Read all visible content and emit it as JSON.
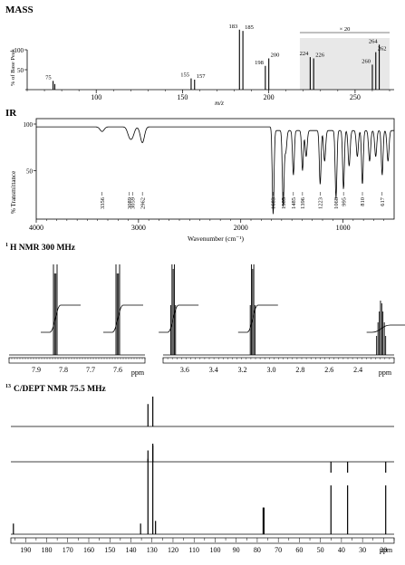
{
  "mass": {
    "title": "MASS",
    "ylabel": "% of Base Peak",
    "xlabel": "m/z",
    "magnify_label": "× 20",
    "xticks": [
      100,
      150,
      200,
      250
    ],
    "yticks": [
      50,
      100
    ],
    "xlim": [
      60,
      270
    ],
    "ylim": [
      0,
      100
    ],
    "magnified_region": [
      218,
      270
    ],
    "peaks": [
      {
        "mz": 75,
        "intensity": 14,
        "label": "75"
      },
      {
        "mz": 76,
        "intensity": 9,
        "label": ""
      },
      {
        "mz": 155,
        "intensity": 18,
        "label": "155"
      },
      {
        "mz": 157,
        "intensity": 16,
        "label": "157"
      },
      {
        "mz": 183,
        "intensity": 96,
        "label": "183"
      },
      {
        "mz": 185,
        "intensity": 94,
        "label": "185"
      },
      {
        "mz": 198,
        "intensity": 38,
        "label": "198"
      },
      {
        "mz": 200,
        "intensity": 50,
        "label": "200"
      },
      {
        "mz": 224,
        "intensity": 52,
        "label": "224"
      },
      {
        "mz": 226,
        "intensity": 50,
        "label": "226"
      },
      {
        "mz": 260,
        "intensity": 40,
        "label": "260"
      },
      {
        "mz": 262,
        "intensity": 60,
        "label": "262"
      },
      {
        "mz": 264,
        "intensity": 72,
        "label": "264"
      }
    ]
  },
  "ir": {
    "title": "IR",
    "ylabel": "% Transmittance",
    "xlabel": "Wavenumber (cm⁻¹)",
    "xticks": [
      4000,
      3000,
      2000,
      1000
    ],
    "yticks": [
      50,
      100
    ],
    "xlim": [
      4000,
      500
    ],
    "ylim": [
      0,
      100
    ],
    "bands": [
      {
        "wn": 3356,
        "t": 92,
        "label": "3356"
      },
      {
        "wn": 3089,
        "t": 88,
        "label": "3089"
      },
      {
        "wn": 3059,
        "t": 88,
        "label": "3059"
      },
      {
        "wn": 2962,
        "t": 80,
        "label": "2962"
      },
      {
        "wn": 1683,
        "t": 3,
        "label": "1683"
      },
      {
        "wn": 1585,
        "t": 12,
        "label": "1585"
      },
      {
        "wn": 1485,
        "t": 45,
        "label": "1485"
      },
      {
        "wn": 1396,
        "t": 50,
        "label": "1396"
      },
      {
        "wn": 1223,
        "t": 35,
        "label": "1223"
      },
      {
        "wn": 1068,
        "t": 20,
        "label": "1068"
      },
      {
        "wn": 995,
        "t": 30,
        "label": "995"
      },
      {
        "wn": 810,
        "t": 35,
        "label": "810"
      },
      {
        "wn": 617,
        "t": 45,
        "label": "617"
      }
    ]
  },
  "hnmr": {
    "title": "H NMR 300 MHz",
    "title_sup": "1",
    "unit": "ppm",
    "left_ticks": [
      "7.9",
      "7.8",
      "7.7",
      "7.6"
    ],
    "right_ticks": [
      "3.6",
      "3.4",
      "3.2",
      "3.0",
      "2.8",
      "2.6",
      "2.4"
    ],
    "left_xlim": [
      8.0,
      7.5
    ],
    "right_xlim": [
      3.75,
      2.15
    ],
    "signals": [
      {
        "ppm": 7.83,
        "mult": "d",
        "panel": "left"
      },
      {
        "ppm": 7.6,
        "mult": "d",
        "panel": "left"
      },
      {
        "ppm": 3.68,
        "mult": "t",
        "panel": "right"
      },
      {
        "ppm": 3.13,
        "mult": "t",
        "panel": "right"
      },
      {
        "ppm": 2.24,
        "mult": "m",
        "panel": "right"
      }
    ]
  },
  "cnmr": {
    "title": "C/DEPT NMR 75.5 MHz",
    "title_sup": "13",
    "unit": "ppm",
    "xticks": [
      190,
      180,
      170,
      160,
      150,
      140,
      130,
      120,
      110,
      100,
      90,
      80,
      70,
      60,
      50,
      40,
      30,
      20
    ],
    "xlim": [
      197,
      15
    ],
    "dept90": [
      {
        "ppm": 131.9,
        "h": 0.75
      },
      {
        "ppm": 129.6,
        "h": 1.0
      }
    ],
    "dept135": [
      {
        "ppm": 131.9,
        "h": 0.5,
        "dir": 1
      },
      {
        "ppm": 129.6,
        "h": 0.8,
        "dir": 1
      },
      {
        "ppm": 45.0,
        "h": 0.35,
        "dir": -1
      },
      {
        "ppm": 37.1,
        "h": 0.35,
        "dir": -1
      },
      {
        "ppm": 19.0,
        "h": 0.35,
        "dir": -1
      }
    ],
    "carbon13": [
      {
        "ppm": 195.8,
        "h": 0.12
      },
      {
        "ppm": 135.4,
        "h": 0.12
      },
      {
        "ppm": 131.9,
        "h": 0.85
      },
      {
        "ppm": 129.6,
        "h": 1.0
      },
      {
        "ppm": 128.3,
        "h": 0.15
      },
      {
        "ppm": 77.2,
        "h": 0.3
      },
      {
        "ppm": 77.0,
        "h": 0.3
      },
      {
        "ppm": 76.8,
        "h": 0.3
      },
      {
        "ppm": 45.0,
        "h": 0.55
      },
      {
        "ppm": 37.1,
        "h": 0.55
      },
      {
        "ppm": 19.0,
        "h": 0.55
      }
    ]
  }
}
